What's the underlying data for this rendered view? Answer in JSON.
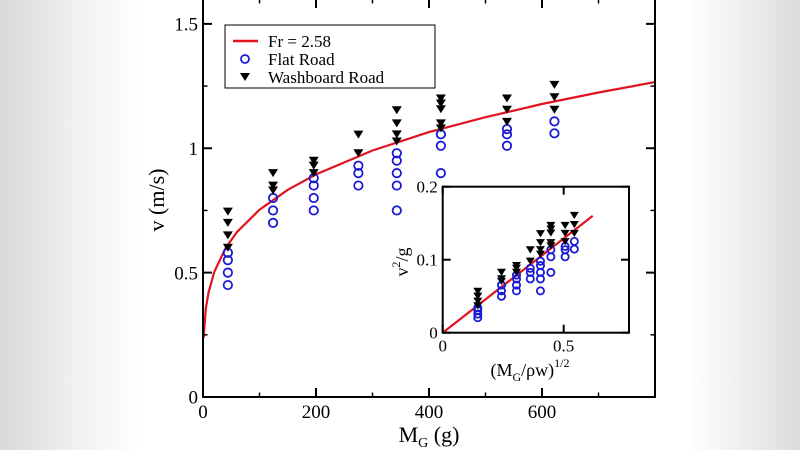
{
  "chart_data": [
    {
      "type": "scatter",
      "xlabel": {
        "main": "M",
        "sub": "G",
        "rest": " (g)"
      },
      "ylabel": "v (m/s)",
      "xlim": [
        0,
        800
      ],
      "ylim": [
        0,
        1.6
      ],
      "xticks": [
        0,
        200,
        400,
        600
      ],
      "xtick_labels": [
        "0",
        "200",
        "400",
        "600"
      ],
      "yticks": [
        0,
        0.5,
        1,
        1.5
      ],
      "ytick_labels": [
        "0",
        "0.5",
        "1",
        "1.5"
      ],
      "legend_placement": "top-left",
      "colors": {
        "fit": "#e0141e",
        "flat": "#1a1ad6",
        "washboard": "#000000"
      },
      "series": [
        {
          "name": "Fr = 2.58",
          "kind": "line",
          "x": [
            1,
            5,
            10,
            20,
            40,
            60,
            100,
            150,
            200,
            300,
            400,
            500,
            600,
            700,
            800
          ],
          "y": [
            0.238,
            0.356,
            0.423,
            0.503,
            0.599,
            0.663,
            0.753,
            0.833,
            0.895,
            0.991,
            1.065,
            1.125,
            1.178,
            1.224,
            1.266
          ]
        },
        {
          "name": "Flat Road",
          "kind": "scatter",
          "marker": "open-circle",
          "x": [
            44,
            44,
            44,
            44,
            124,
            124,
            124,
            196,
            196,
            196,
            196,
            275,
            275,
            275,
            343,
            343,
            343,
            343,
            343,
            421,
            421,
            421,
            538,
            538,
            538,
            622,
            622
          ],
          "y": [
            0.45,
            0.5,
            0.55,
            0.58,
            0.7,
            0.75,
            0.8,
            0.75,
            0.8,
            0.85,
            0.88,
            0.85,
            0.9,
            0.93,
            0.75,
            0.85,
            0.9,
            0.95,
            0.98,
            0.9,
            1.01,
            1.056,
            1.01,
            1.056,
            1.077,
            1.06,
            1.108
          ]
        },
        {
          "name": "Washboard Road",
          "kind": "scatter",
          "marker": "down-triangle",
          "x": [
            44,
            44,
            44,
            44,
            124,
            124,
            124,
            196,
            196,
            196,
            275,
            275,
            343,
            343,
            343,
            343,
            421,
            421,
            421,
            421,
            421,
            538,
            538,
            538,
            622,
            622,
            622
          ],
          "y": [
            0.6,
            0.65,
            0.7,
            0.745,
            0.83,
            0.85,
            0.9,
            0.9,
            0.93,
            0.95,
            0.98,
            1.055,
            1.027,
            1.056,
            1.1,
            1.153,
            1.08,
            1.1,
            1.157,
            1.18,
            1.2,
            1.106,
            1.155,
            1.2,
            1.155,
            1.205,
            1.255
          ]
        }
      ]
    },
    {
      "type": "scatter",
      "inset": true,
      "xlabel": {
        "open": "(M",
        "sub": "G",
        "rest": "/ρw)",
        "sup": "1/2"
      },
      "ylabel": {
        "main": "v",
        "sup": "2",
        "rest": "/g"
      },
      "xlim": [
        0,
        0.77
      ],
      "ylim": [
        0,
        0.2
      ],
      "xticks": [
        0,
        0.5
      ],
      "xtick_labels": [
        "0",
        "0.5"
      ],
      "yticks": [
        0,
        0.1,
        0.2
      ],
      "ytick_labels": [
        "0",
        "0.1",
        "0.2"
      ],
      "series": [
        {
          "kind": "line",
          "x": [
            0,
            0.62
          ],
          "y": [
            0,
            0.16
          ]
        },
        {
          "kind": "scatter",
          "marker": "open-circle",
          "x": [
            0.145,
            0.145,
            0.145,
            0.145,
            0.243,
            0.243,
            0.243,
            0.305,
            0.305,
            0.305,
            0.305,
            0.362,
            0.362,
            0.362,
            0.404,
            0.404,
            0.404,
            0.404,
            0.404,
            0.447,
            0.447,
            0.447,
            0.506,
            0.506,
            0.506,
            0.544,
            0.544
          ],
          "y": [
            0.0206,
            0.0255,
            0.0308,
            0.0343,
            0.0499,
            0.0573,
            0.0652,
            0.0573,
            0.0652,
            0.0737,
            0.0789,
            0.0737,
            0.0826,
            0.0882,
            0.0573,
            0.0737,
            0.0826,
            0.092,
            0.0979,
            0.0826,
            0.104,
            0.1137,
            0.104,
            0.1137,
            0.1182,
            0.1145,
            0.1251
          ]
        },
        {
          "kind": "scatter",
          "marker": "down-triangle",
          "x": [
            0.145,
            0.145,
            0.145,
            0.145,
            0.243,
            0.243,
            0.243,
            0.305,
            0.305,
            0.305,
            0.362,
            0.362,
            0.404,
            0.404,
            0.404,
            0.404,
            0.447,
            0.447,
            0.447,
            0.447,
            0.447,
            0.506,
            0.506,
            0.506,
            0.544,
            0.544,
            0.544
          ],
          "y": [
            0.0367,
            0.0431,
            0.0499,
            0.0566,
            0.0702,
            0.0737,
            0.0826,
            0.0826,
            0.0882,
            0.092,
            0.0979,
            0.1135,
            0.1075,
            0.1137,
            0.1233,
            0.1355,
            0.1189,
            0.1233,
            0.1365,
            0.1419,
            0.1468,
            0.1247,
            0.136,
            0.1468,
            0.136,
            0.148,
            0.1606
          ]
        }
      ]
    }
  ]
}
